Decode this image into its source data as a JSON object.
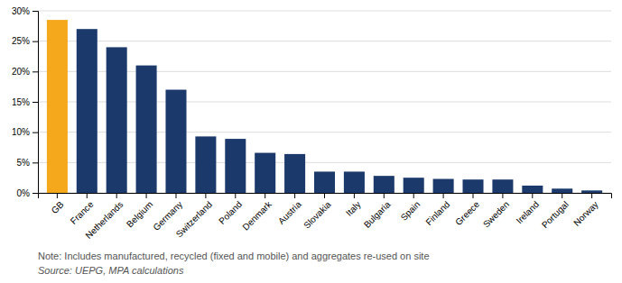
{
  "chart_data": {
    "type": "bar",
    "categories": [
      "GB",
      "France",
      "Netherlands",
      "Belgium",
      "Germany",
      "Switzerland",
      "Poland",
      "Denmark",
      "Austria",
      "Slovakia",
      "Italy",
      "Bulgaria",
      "Spain",
      "Finland",
      "Greece",
      "Sweden",
      "Ireland",
      "Portugal",
      "Norway"
    ],
    "values": [
      28.5,
      27.0,
      24.0,
      21.0,
      17.0,
      9.3,
      8.9,
      6.6,
      6.4,
      3.5,
      3.5,
      2.8,
      2.5,
      2.3,
      2.2,
      2.2,
      1.2,
      0.7,
      0.4
    ],
    "colors": [
      "#F5A81C",
      "#1B3A6B",
      "#1B3A6B",
      "#1B3A6B",
      "#1B3A6B",
      "#1B3A6B",
      "#1B3A6B",
      "#1B3A6B",
      "#1B3A6B",
      "#1B3A6B",
      "#1B3A6B",
      "#1B3A6B",
      "#1B3A6B",
      "#1B3A6B",
      "#1B3A6B",
      "#1B3A6B",
      "#1B3A6B",
      "#1B3A6B",
      "#1B3A6B"
    ],
    "ylim": [
      0,
      30
    ],
    "yticks": [
      {
        "value": 0,
        "label": "0%"
      },
      {
        "value": 5,
        "label": "5%"
      },
      {
        "value": 10,
        "label": "10%"
      },
      {
        "value": 15,
        "label": "15%"
      },
      {
        "value": 20,
        "label": "20%"
      },
      {
        "value": 25,
        "label": "25%"
      },
      {
        "value": 30,
        "label": "30%"
      }
    ],
    "grid": true,
    "annotations": [
      "Note: Includes manufactured, recycled (fixed and mobile) and aggregates re-used on site",
      "Source: UEPG, MPA calculations"
    ]
  }
}
